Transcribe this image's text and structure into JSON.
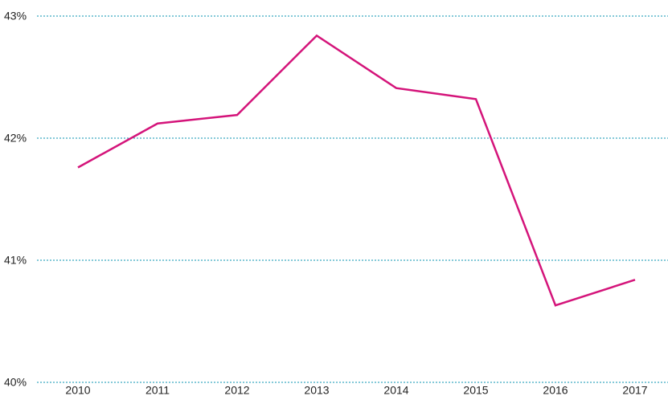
{
  "chart_data": {
    "type": "line",
    "categories": [
      "2010",
      "2011",
      "2012",
      "2013",
      "2014",
      "2015",
      "2016",
      "2017"
    ],
    "values": [
      41.76,
      42.12,
      42.19,
      42.84,
      42.41,
      42.32,
      40.63,
      40.84
    ],
    "color": "#d4147a",
    "ylim": [
      40,
      43
    ],
    "yticks": [
      {
        "value": 40,
        "label": "40%"
      },
      {
        "value": 41,
        "label": "41%"
      },
      {
        "value": 42,
        "label": "42%"
      },
      {
        "value": 43,
        "label": "43%"
      }
    ],
    "grid": true
  }
}
